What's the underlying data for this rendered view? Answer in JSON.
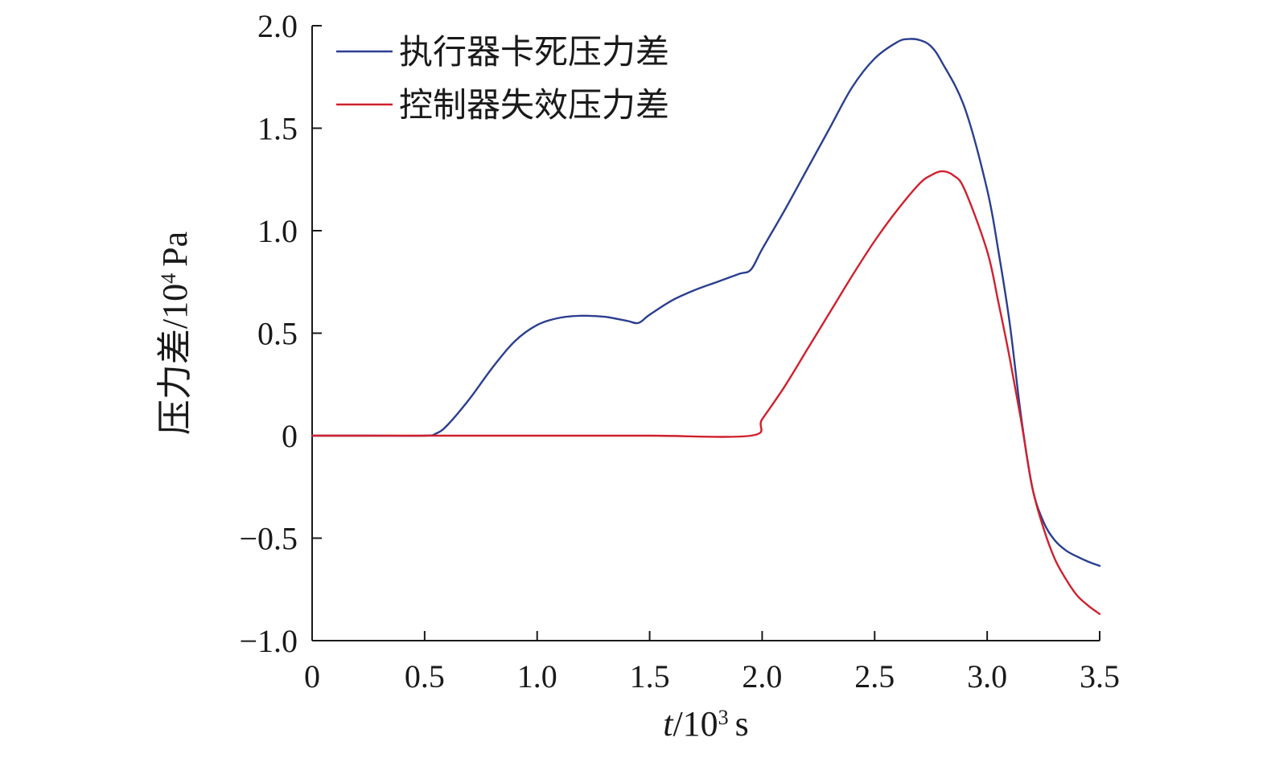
{
  "chart_data": {
    "type": "line",
    "title": "",
    "xlabel": {
      "var": "t",
      "unit_base": "/10",
      "unit_exp": "3",
      "unit": "s"
    },
    "ylabel": {
      "main": "压力差/10",
      "exp": "4",
      "unit": "Pa"
    },
    "xlim": [
      0,
      3.5
    ],
    "ylim": [
      -1.0,
      2.0
    ],
    "xticks": [
      {
        "value": 0,
        "label": "0"
      },
      {
        "value": 0.5,
        "label": "0.5"
      },
      {
        "value": 1.0,
        "label": "1.0"
      },
      {
        "value": 1.5,
        "label": "1.5"
      },
      {
        "value": 2.0,
        "label": "2.0"
      },
      {
        "value": 2.5,
        "label": "2.5"
      },
      {
        "value": 3.0,
        "label": "3.0"
      },
      {
        "value": 3.5,
        "label": "3.5"
      }
    ],
    "yticks": [
      {
        "value": -1.0,
        "label": "−1.0"
      },
      {
        "value": -0.5,
        "label": "−0.5"
      },
      {
        "value": 0,
        "label": "0"
      },
      {
        "value": 0.5,
        "label": "0.5"
      },
      {
        "value": 1.0,
        "label": "1.0"
      },
      {
        "value": 1.5,
        "label": "1.5"
      },
      {
        "value": 2.0,
        "label": "2.0"
      }
    ],
    "grid": false,
    "legend_position": "top-left",
    "series": [
      {
        "name": "执行器卡死压力差",
        "color": "#2b3f8f",
        "x": [
          0,
          0.25,
          0.5,
          0.55,
          0.6,
          0.7,
          0.8,
          0.9,
          1.0,
          1.1,
          1.2,
          1.3,
          1.4,
          1.45,
          1.5,
          1.6,
          1.7,
          1.8,
          1.9,
          1.95,
          2.0,
          2.1,
          2.2,
          2.3,
          2.4,
          2.5,
          2.6,
          2.65,
          2.7,
          2.75,
          2.8,
          2.9,
          3.0,
          3.05,
          3.1,
          3.15,
          3.2,
          3.25,
          3.3,
          3.35,
          3.4,
          3.45,
          3.5
        ],
        "y": [
          0,
          0,
          0,
          0.01,
          0.05,
          0.18,
          0.33,
          0.46,
          0.54,
          0.575,
          0.585,
          0.58,
          0.56,
          0.55,
          0.59,
          0.66,
          0.71,
          0.75,
          0.79,
          0.81,
          0.91,
          1.1,
          1.3,
          1.5,
          1.7,
          1.84,
          1.92,
          1.935,
          1.93,
          1.9,
          1.82,
          1.6,
          1.2,
          0.9,
          0.55,
          0.1,
          -0.25,
          -0.42,
          -0.51,
          -0.56,
          -0.59,
          -0.615,
          -0.635
        ]
      },
      {
        "name": "控制器失效压力差",
        "color": "#d0202e",
        "x": [
          0,
          0.5,
          1.0,
          1.5,
          1.95,
          2.0,
          2.1,
          2.2,
          2.3,
          2.4,
          2.5,
          2.6,
          2.7,
          2.75,
          2.8,
          2.85,
          2.9,
          3.0,
          3.05,
          3.1,
          3.15,
          3.2,
          3.25,
          3.3,
          3.35,
          3.4,
          3.45,
          3.5
        ],
        "y": [
          0,
          0,
          0,
          0,
          0,
          0.08,
          0.24,
          0.42,
          0.6,
          0.78,
          0.95,
          1.1,
          1.23,
          1.27,
          1.29,
          1.27,
          1.2,
          0.9,
          0.65,
          0.38,
          0.08,
          -0.25,
          -0.45,
          -0.6,
          -0.7,
          -0.78,
          -0.83,
          -0.87
        ]
      }
    ]
  }
}
